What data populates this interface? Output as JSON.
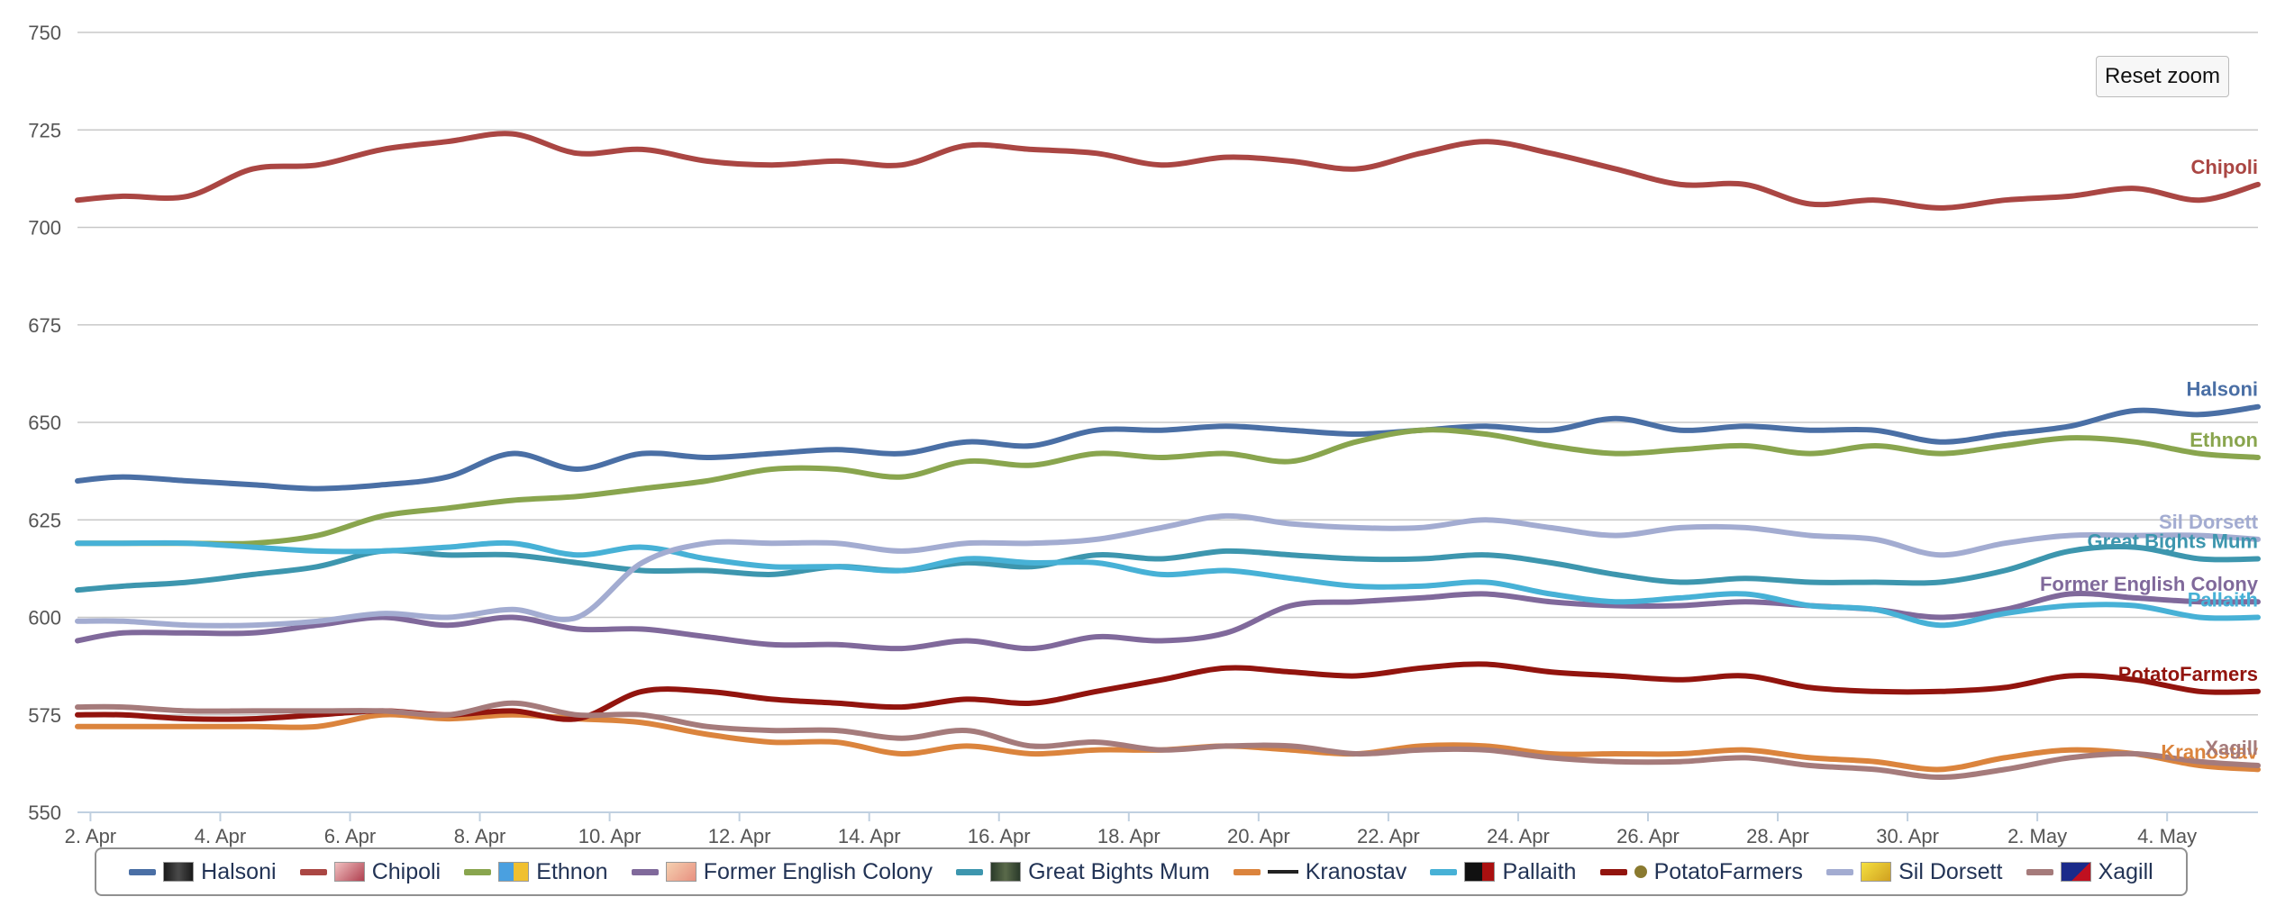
{
  "reset_zoom_label": "Reset zoom",
  "chart_data": {
    "type": "line",
    "title": "",
    "xlabel": "",
    "ylabel": "",
    "ylim": [
      550,
      750
    ],
    "y_ticks": [
      550,
      575,
      600,
      625,
      650,
      675,
      700,
      725,
      750
    ],
    "x_range": [
      1.8,
      35.4
    ],
    "x_ticks": [
      {
        "x": 2,
        "label": "2. Apr"
      },
      {
        "x": 4,
        "label": "4. Apr"
      },
      {
        "x": 6,
        "label": "6. Apr"
      },
      {
        "x": 8,
        "label": "8. Apr"
      },
      {
        "x": 10,
        "label": "10. Apr"
      },
      {
        "x": 12,
        "label": "12. Apr"
      },
      {
        "x": 14,
        "label": "14. Apr"
      },
      {
        "x": 16,
        "label": "16. Apr"
      },
      {
        "x": 18,
        "label": "18. Apr"
      },
      {
        "x": 20,
        "label": "20. Apr"
      },
      {
        "x": 22,
        "label": "22. Apr"
      },
      {
        "x": 24,
        "label": "24. Apr"
      },
      {
        "x": 26,
        "label": "26. Apr"
      },
      {
        "x": 28,
        "label": "28. Apr"
      },
      {
        "x": 30,
        "label": "30. Apr"
      },
      {
        "x": 32,
        "label": "2. May"
      },
      {
        "x": 34,
        "label": "4. May"
      }
    ],
    "x": [
      1.8,
      2.5,
      3.5,
      4.5,
      5.5,
      6.5,
      7.5,
      8.5,
      9.5,
      10.5,
      11.5,
      12.5,
      13.5,
      14.5,
      15.5,
      16.5,
      17.5,
      18.5,
      19.5,
      20.5,
      21.5,
      22.5,
      23.5,
      24.5,
      25.5,
      26.5,
      27.5,
      28.5,
      29.5,
      30.5,
      31.5,
      32.5,
      33.5,
      34.5,
      35.4
    ],
    "grid": true,
    "legend_position": "bottom",
    "series": [
      {
        "name": "Halsoni",
        "color": "#4a6fa5",
        "flag": "dark",
        "end_label": "Halsoni",
        "values": [
          635,
          636,
          635,
          634,
          633,
          634,
          636,
          642,
          638,
          642,
          641,
          642,
          643,
          642,
          645,
          644,
          648,
          648,
          649,
          648,
          647,
          648,
          649,
          648,
          651,
          648,
          649,
          648,
          648,
          645,
          647,
          649,
          653,
          652,
          654
        ]
      },
      {
        "name": "Chipoli",
        "color": "#aa4643",
        "flag": "pink",
        "end_label": "Chipoli",
        "values": [
          707,
          708,
          708,
          715,
          716,
          720,
          722,
          724,
          719,
          720,
          717,
          716,
          717,
          716,
          721,
          720,
          719,
          716,
          718,
          717,
          715,
          719,
          722,
          719,
          715,
          711,
          711,
          706,
          707,
          705,
          707,
          708,
          710,
          707,
          711
        ]
      },
      {
        "name": "Ethnon",
        "color": "#89a54e",
        "flag": "blueyellow",
        "end_label": "Ethnon",
        "values": [
          619,
          619,
          619,
          619,
          621,
          626,
          628,
          630,
          631,
          633,
          635,
          638,
          638,
          636,
          640,
          639,
          642,
          641,
          642,
          640,
          645,
          648,
          647,
          644,
          642,
          643,
          644,
          642,
          644,
          642,
          644,
          646,
          645,
          642,
          641
        ]
      },
      {
        "name": "Former English Colony",
        "color": "#80699b",
        "flag": "peach",
        "end_label": "Former English Colony",
        "values": [
          594,
          596,
          596,
          596,
          598,
          600,
          598,
          600,
          597,
          597,
          595,
          593,
          593,
          592,
          594,
          592,
          595,
          594,
          596,
          603,
          604,
          605,
          606,
          604,
          603,
          603,
          604,
          603,
          602,
          600,
          602,
          606,
          605,
          604,
          604
        ]
      },
      {
        "name": "Great Bights Mum",
        "color": "#3d96ae",
        "flag": "darkgreen",
        "end_label": "Great Bights Mum",
        "values": [
          607,
          608,
          609,
          611,
          613,
          617,
          616,
          616,
          614,
          612,
          612,
          611,
          613,
          612,
          614,
          613,
          616,
          615,
          617,
          616,
          615,
          615,
          616,
          614,
          611,
          609,
          610,
          609,
          609,
          609,
          612,
          617,
          618,
          615,
          615
        ]
      },
      {
        "name": "Kranostav",
        "color": "#db843d",
        "flag": "cross",
        "end_label": "Kranostav",
        "values": [
          572,
          572,
          572,
          572,
          572,
          575,
          574,
          575,
          574,
          573,
          570,
          568,
          568,
          565,
          567,
          565,
          566,
          566,
          567,
          566,
          565,
          567,
          567,
          565,
          565,
          565,
          566,
          564,
          563,
          561,
          564,
          566,
          565,
          562,
          561
        ]
      },
      {
        "name": "Pallaith",
        "color": "#47b1d6",
        "flag": "black",
        "end_label": "Pallaith",
        "values": [
          619,
          619,
          619,
          618,
          617,
          617,
          618,
          619,
          616,
          618,
          615,
          613,
          613,
          612,
          615,
          614,
          614,
          611,
          612,
          610,
          608,
          608,
          609,
          606,
          604,
          605,
          606,
          603,
          602,
          598,
          601,
          603,
          603,
          600,
          600
        ]
      },
      {
        "name": "PotatoFarmers",
        "color": "#92140e",
        "flag": "dot",
        "end_label": "PotatoFarmers",
        "values": [
          575,
          575,
          574,
          574,
          575,
          576,
          575,
          576,
          574,
          581,
          581,
          579,
          578,
          577,
          579,
          578,
          581,
          584,
          587,
          586,
          585,
          587,
          588,
          586,
          585,
          584,
          585,
          582,
          581,
          581,
          582,
          585,
          584,
          581,
          581
        ]
      },
      {
        "name": "Sil Dorsett",
        "color": "#a3acd1",
        "flag": "yellow",
        "end_label": "Sil Dorsett",
        "values": [
          599,
          599,
          598,
          598,
          599,
          601,
          600,
          602,
          600,
          614,
          619,
          619,
          619,
          617,
          619,
          619,
          620,
          623,
          626,
          624,
          623,
          623,
          625,
          623,
          621,
          623,
          623,
          621,
          620,
          616,
          619,
          621,
          621,
          621,
          620
        ]
      },
      {
        "name": "Xagill",
        "color": "#a57b7b",
        "flag": "bluered",
        "end_label": "Xagill",
        "values": [
          577,
          577,
          576,
          576,
          576,
          576,
          575,
          578,
          575,
          575,
          572,
          571,
          571,
          569,
          571,
          567,
          568,
          566,
          567,
          567,
          565,
          566,
          566,
          564,
          563,
          563,
          564,
          562,
          561,
          559,
          561,
          564,
          565,
          563,
          562
        ]
      }
    ]
  }
}
